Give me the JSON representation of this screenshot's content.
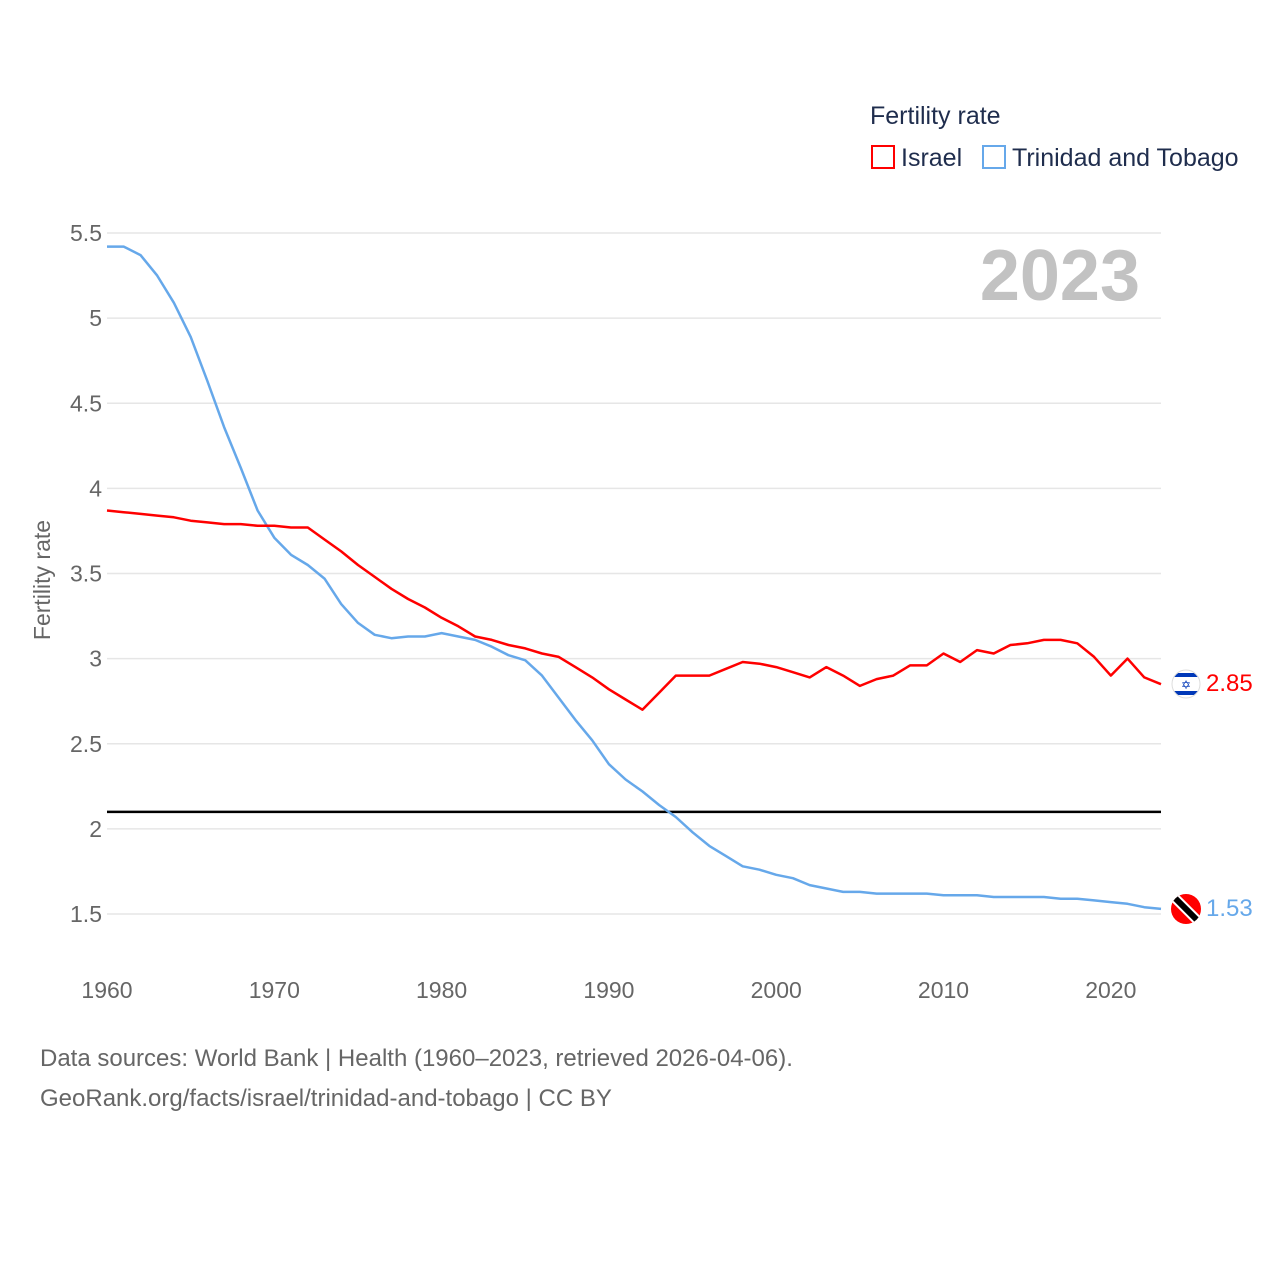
{
  "chart_data": {
    "type": "line",
    "title": "",
    "year_label": "2023",
    "xlabel": "",
    "ylabel": "Fertility rate",
    "xlim": [
      1960,
      2023
    ],
    "ylim": [
      1.5,
      5.5
    ],
    "x_ticks": [
      "1960",
      "1970",
      "1980",
      "1990",
      "2000",
      "2010",
      "2020"
    ],
    "y_ticks": [
      "1.5",
      "2",
      "2.5",
      "3",
      "3.5",
      "4",
      "4.5",
      "5",
      "5.5"
    ],
    "grid": true,
    "legend": {
      "title": "Fertility rate",
      "position": "top-right"
    },
    "reference_line": 2.1,
    "x": [
      1960,
      1961,
      1962,
      1963,
      1964,
      1965,
      1966,
      1967,
      1968,
      1969,
      1970,
      1971,
      1972,
      1973,
      1974,
      1975,
      1976,
      1977,
      1978,
      1979,
      1980,
      1981,
      1982,
      1983,
      1984,
      1985,
      1986,
      1987,
      1988,
      1989,
      1990,
      1991,
      1992,
      1993,
      1994,
      1995,
      1996,
      1997,
      1998,
      1999,
      2000,
      2001,
      2002,
      2003,
      2004,
      2005,
      2006,
      2007,
      2008,
      2009,
      2010,
      2011,
      2012,
      2013,
      2014,
      2015,
      2016,
      2017,
      2018,
      2019,
      2020,
      2021,
      2022,
      2023
    ],
    "series": [
      {
        "name": "Israel",
        "color": "#ff0000",
        "end_label": "2.85",
        "values": [
          3.87,
          3.86,
          3.85,
          3.84,
          3.83,
          3.81,
          3.8,
          3.79,
          3.79,
          3.78,
          3.78,
          3.77,
          3.77,
          3.7,
          3.63,
          3.55,
          3.48,
          3.41,
          3.35,
          3.3,
          3.24,
          3.19,
          3.13,
          3.11,
          3.08,
          3.06,
          3.03,
          3.01,
          2.95,
          2.89,
          2.82,
          2.76,
          2.7,
          2.8,
          2.9,
          2.9,
          2.9,
          2.94,
          2.98,
          2.97,
          2.95,
          2.92,
          2.89,
          2.95,
          2.9,
          2.84,
          2.88,
          2.9,
          2.96,
          2.96,
          3.03,
          2.98,
          3.05,
          3.03,
          3.08,
          3.09,
          3.11,
          3.11,
          3.09,
          3.01,
          2.9,
          3.0,
          2.89,
          2.85
        ]
      },
      {
        "name": "Trinidad and Tobago",
        "color": "#66a8ea",
        "end_label": "1.53",
        "values": [
          5.42,
          5.42,
          5.37,
          5.25,
          5.09,
          4.89,
          4.63,
          4.36,
          4.12,
          3.87,
          3.71,
          3.61,
          3.55,
          3.47,
          3.32,
          3.21,
          3.14,
          3.12,
          3.13,
          3.13,
          3.15,
          3.13,
          3.11,
          3.07,
          3.02,
          2.99,
          2.9,
          2.77,
          2.64,
          2.52,
          2.38,
          2.29,
          2.22,
          2.14,
          2.07,
          1.98,
          1.9,
          1.84,
          1.78,
          1.76,
          1.73,
          1.71,
          1.67,
          1.65,
          1.63,
          1.63,
          1.62,
          1.62,
          1.62,
          1.62,
          1.61,
          1.61,
          1.61,
          1.6,
          1.6,
          1.6,
          1.6,
          1.59,
          1.59,
          1.58,
          1.57,
          1.56,
          1.54,
          1.53
        ]
      }
    ]
  },
  "footer": {
    "sources": "Data sources: World Bank | Health (1960–2023, retrieved 2026-04-06).",
    "link": "GeoRank.org/facts/israel/trinidad-and-tobago | CC BY"
  }
}
